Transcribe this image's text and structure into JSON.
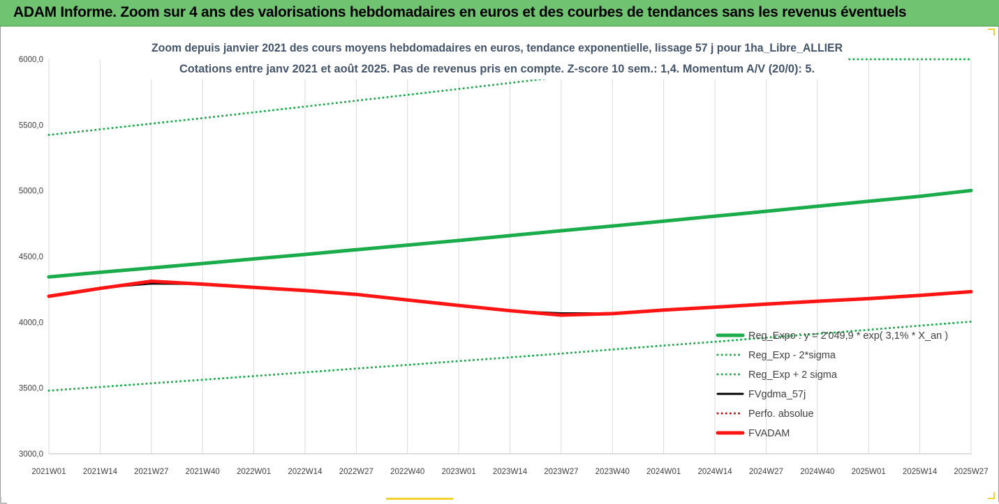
{
  "banner": {
    "title": "ADAM Informe. Zoom sur 4 ans des valorisations hebdomadaires en euros et des courbes de tendances sans les revenus éventuels"
  },
  "colors": {
    "banner_bg": "#70c370",
    "reg_expo": "#1aab4a",
    "sigma_bands": "#1aab4a",
    "fvgdma": "#000000",
    "perfo": "#d01010",
    "fvadam": "#ff1414",
    "gridline": "#d9d9d9"
  },
  "chart_data": {
    "type": "line",
    "title_line1": "Zoom depuis janvier 2021 des cours moyens hebdomadaires en euros, tendance exponentielle, lissage 57 j pour 1ha_Libre_ALLIER",
    "title_line2": "Cotations entre janv 2021 et août 2025.  Pas de revenus pris en compte. Z-score 10 sem.: 1,4. Momentum A/V (20/0): 5.",
    "xlabel": "",
    "ylabel": "",
    "ylim": [
      3000,
      6000
    ],
    "y_ticks": [
      "3000,0",
      "3500,0",
      "4000,0",
      "4500,0",
      "5000,0",
      "5500,0",
      "6000,0"
    ],
    "x_ticks": [
      "2021W01",
      "2021W14",
      "2021W27",
      "2021W40",
      "2022W01",
      "2022W14",
      "2022W27",
      "2022W40",
      "2023W01",
      "2023W14",
      "2023W27",
      "2023W40",
      "2024W01",
      "2024W14",
      "2024W27",
      "2024W40",
      "2025W01",
      "2025W14",
      "2025W27"
    ],
    "grid": "vertical",
    "legend_position": "bottom-right",
    "series": [
      {
        "name": "Reg_Expo : y = 2'049,9 * exp( 3,1% *  X_an )",
        "style": "solid-thick",
        "values": [
          4345,
          4380,
          4413,
          4447,
          4482,
          4516,
          4552,
          4587,
          4622,
          4659,
          4696,
          4732,
          4769,
          4807,
          4844,
          4882,
          4920,
          4958,
          5002
        ]
      },
      {
        "name": "Reg_Exp - 2*sigma",
        "style": "dotted",
        "values": [
          3480,
          3508,
          3536,
          3563,
          3591,
          3619,
          3648,
          3676,
          3705,
          3733,
          3762,
          3793,
          3823,
          3852,
          3883,
          3912,
          3943,
          3974,
          4005
        ]
      },
      {
        "name": "Reg_Exp + 2 sigma",
        "style": "dotted",
        "values": [
          5425,
          5467,
          5510,
          5552,
          5596,
          5640,
          5685,
          5729,
          5774,
          5820,
          5866,
          5912,
          5958,
          6000,
          6000,
          6000,
          6000,
          6000,
          6000
        ]
      },
      {
        "name": "FVgdma_57j",
        "style": "solid",
        "values": [
          4200,
          4262,
          4295,
          4290,
          4268,
          4243,
          4213,
          4172,
          4128,
          4085,
          4068,
          4068,
          4093,
          4115,
          4138,
          4160,
          4180,
          4202,
          4230
        ]
      },
      {
        "name": "Perfo. absolue",
        "style": "dotted",
        "values": []
      },
      {
        "name": "FVADAM",
        "style": "solid-thick",
        "values": [
          4198,
          4258,
          4312,
          4290,
          4265,
          4242,
          4212,
          4170,
          4128,
          4088,
          4055,
          4066,
          4093,
          4115,
          4138,
          4160,
          4180,
          4205,
          4233
        ]
      }
    ]
  }
}
